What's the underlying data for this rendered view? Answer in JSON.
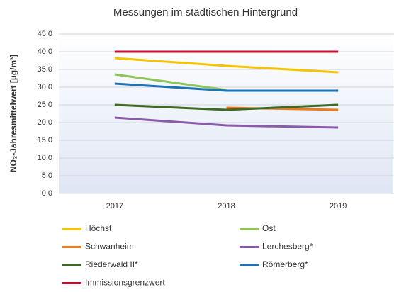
{
  "chart_data": {
    "type": "line",
    "title": "Messungen im städtischen Hintergrund",
    "y_label": "NO₂-Jahresmittelwert [µg/m³]",
    "categories": [
      "2017",
      "2018",
      "2019"
    ],
    "series": [
      {
        "name": "Höchst",
        "color": "#f5c400",
        "values": [
          38.2,
          36.0,
          34.2
        ]
      },
      {
        "name": "Ost",
        "color": "#8fc45a",
        "values": [
          33.6,
          29.2,
          null
        ]
      },
      {
        "name": "Schwanheim",
        "color": "#ec7a1c",
        "values": [
          null,
          24.2,
          23.6
        ]
      },
      {
        "name": "Lerchesberg*",
        "color": "#8a5aa8",
        "values": [
          21.4,
          19.2,
          18.6
        ]
      },
      {
        "name": "Riederwald II*",
        "color": "#3f6a24",
        "values": [
          25.0,
          23.6,
          25.0
        ]
      },
      {
        "name": "Römerberg*",
        "color": "#1c73b8",
        "values": [
          31.0,
          29.0,
          29.0
        ]
      },
      {
        "name": "Immissionsgrenzwert",
        "color": "#c8102e",
        "values": [
          40.0,
          40.0,
          40.0
        ]
      }
    ],
    "ylim": [
      0,
      45
    ],
    "yticks": [
      {
        "value": 0,
        "label": "0,0"
      },
      {
        "value": 5,
        "label": "5,0"
      },
      {
        "value": 10,
        "label": "10,0"
      },
      {
        "value": 15,
        "label": "15,0"
      },
      {
        "value": 20,
        "label": "20,0"
      },
      {
        "value": 25,
        "label": "25,0"
      },
      {
        "value": 30,
        "label": "30,0"
      },
      {
        "value": 35,
        "label": "35,0"
      },
      {
        "value": 40,
        "label": "40,0"
      },
      {
        "value": 45,
        "label": "45,0"
      }
    ],
    "grid": true
  }
}
